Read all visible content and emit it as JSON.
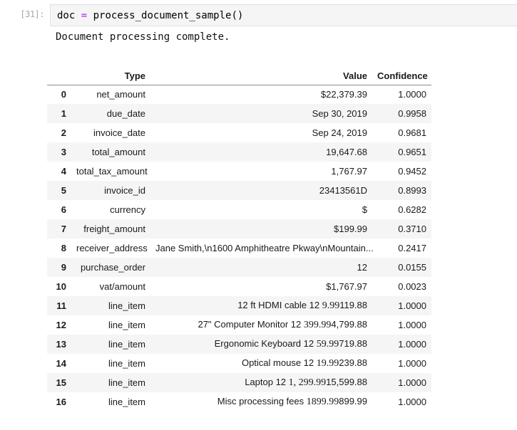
{
  "colors": {
    "operator": "#aa22ff",
    "prompt": "#a6a6a6",
    "cell_bg": "#f5f5f5",
    "cell_border": "#e0e0e0",
    "stripe": "#f5f5f5",
    "header_border": "#8c8c8c"
  },
  "cell": {
    "prompt": "[31]:",
    "code_before": "doc ",
    "code_operator": "=",
    "code_after": " process_document_sample()",
    "output_text": "Document processing complete."
  },
  "table": {
    "columns": [
      "",
      "Type",
      "Value",
      "Confidence"
    ],
    "rows": [
      {
        "index": "0",
        "type": "net_amount",
        "confidence": "1.0000",
        "value_parts": [
          {
            "text": "$22,379.39",
            "font": "sans"
          }
        ]
      },
      {
        "index": "1",
        "type": "due_date",
        "confidence": "0.9958",
        "value_parts": [
          {
            "text": "Sep 30, 2019",
            "font": "sans"
          }
        ]
      },
      {
        "index": "2",
        "type": "invoice_date",
        "confidence": "0.9681",
        "value_parts": [
          {
            "text": "Sep 24, 2019",
            "font": "sans"
          }
        ]
      },
      {
        "index": "3",
        "type": "total_amount",
        "confidence": "0.9651",
        "value_parts": [
          {
            "text": "19,647.68",
            "font": "sans"
          }
        ]
      },
      {
        "index": "4",
        "type": "total_tax_amount",
        "confidence": "0.9452",
        "value_parts": [
          {
            "text": "1,767.97",
            "font": "sans"
          }
        ]
      },
      {
        "index": "5",
        "type": "invoice_id",
        "confidence": "0.8993",
        "value_parts": [
          {
            "text": "23413561D",
            "font": "sans"
          }
        ]
      },
      {
        "index": "6",
        "type": "currency",
        "confidence": "0.6282",
        "value_parts": [
          {
            "text": "$",
            "font": "sans"
          }
        ]
      },
      {
        "index": "7",
        "type": "freight_amount",
        "confidence": "0.3710",
        "value_parts": [
          {
            "text": "$199.99",
            "font": "sans"
          }
        ]
      },
      {
        "index": "8",
        "type": "receiver_address",
        "confidence": "0.2417",
        "value_parts": [
          {
            "text": "Jane Smith,\\n1600 Amphitheatre Pkway\\nMountain...",
            "font": "sans"
          }
        ]
      },
      {
        "index": "9",
        "type": "purchase_order",
        "confidence": "0.0155",
        "value_parts": [
          {
            "text": "12",
            "font": "sans"
          }
        ]
      },
      {
        "index": "10",
        "type": "vat/amount",
        "confidence": "0.0023",
        "value_parts": [
          {
            "text": "$1,767.97",
            "font": "sans"
          }
        ]
      },
      {
        "index": "11",
        "type": "line_item",
        "confidence": "1.0000",
        "value_parts": [
          {
            "text": "12 ft HDMI cable 12 ",
            "font": "sans"
          },
          {
            "text": "9.99",
            "font": "serif"
          },
          {
            "text": "119.88",
            "font": "sans"
          }
        ]
      },
      {
        "index": "12",
        "type": "line_item",
        "confidence": "1.0000",
        "value_parts": [
          {
            "text": "27\" Computer Monitor 12 ",
            "font": "sans"
          },
          {
            "text": "399.99",
            "font": "serif"
          },
          {
            "text": "4,799.88",
            "font": "sans"
          }
        ]
      },
      {
        "index": "13",
        "type": "line_item",
        "confidence": "1.0000",
        "value_parts": [
          {
            "text": "Ergonomic Keyboard 12 ",
            "font": "sans"
          },
          {
            "text": "59.99",
            "font": "serif"
          },
          {
            "text": "719.88",
            "font": "sans"
          }
        ]
      },
      {
        "index": "14",
        "type": "line_item",
        "confidence": "1.0000",
        "value_parts": [
          {
            "text": "Optical mouse 12 ",
            "font": "sans"
          },
          {
            "text": "19.99",
            "font": "serif"
          },
          {
            "text": "239.88",
            "font": "sans"
          }
        ]
      },
      {
        "index": "15",
        "type": "line_item",
        "confidence": "1.0000",
        "value_parts": [
          {
            "text": "Laptop 12 ",
            "font": "sans"
          },
          {
            "text": "1, 299.99",
            "font": "serif"
          },
          {
            "text": "15,599.88",
            "font": "sans"
          }
        ]
      },
      {
        "index": "16",
        "type": "line_item",
        "confidence": "1.0000",
        "value_parts": [
          {
            "text": "Misc processing fees ",
            "font": "sans"
          },
          {
            "text": "1899.99",
            "font": "serif"
          },
          {
            "text": "899.99",
            "font": "sans"
          }
        ]
      }
    ]
  }
}
